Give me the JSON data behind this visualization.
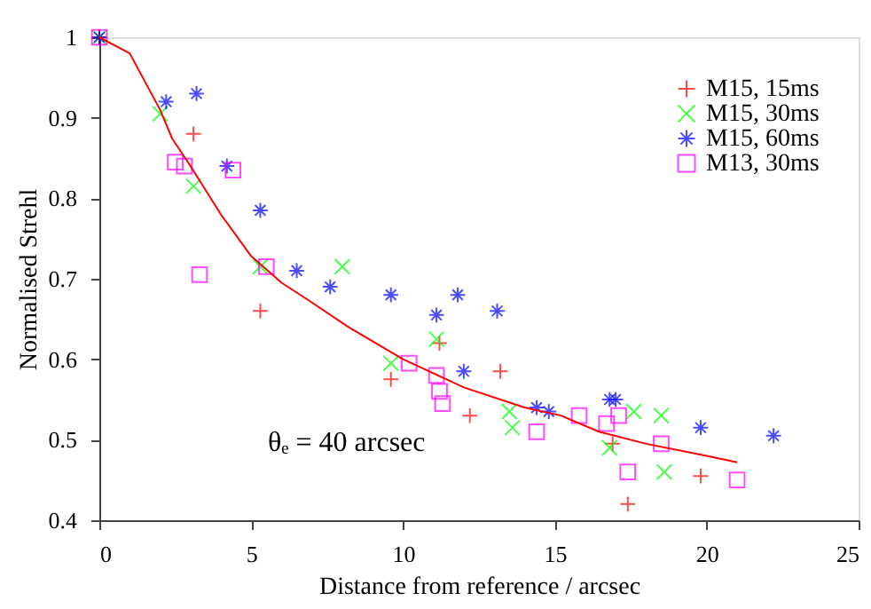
{
  "chart_data": {
    "type": "scatter",
    "xlabel": "Distance from reference / arcsec",
    "ylabel": "Normalised Strehl",
    "xlim": [
      0,
      25
    ],
    "xticks": [
      0,
      5,
      10,
      15,
      20,
      25
    ],
    "ylim": [
      0.4,
      1
    ],
    "yticks": [
      {
        "value": 0.4,
        "label": "0.4"
      },
      {
        "value": 0.5,
        "label": "0.5"
      },
      {
        "value": 0.6,
        "label": "0.6"
      },
      {
        "value": 0.7,
        "label": "0.7"
      },
      {
        "value": 0.8,
        "label": "0.8"
      },
      {
        "value": 0.9,
        "label": "0.9"
      },
      {
        "value": 1,
        "label": "1"
      }
    ],
    "grid": false,
    "legend": "top right",
    "annotations": [
      "θₑ = 40 arcsec"
    ],
    "series": [
      {
        "name": "M15, 15ms",
        "color": "#ff0000",
        "marker": "cross",
        "x": [
          0,
          3.1,
          5.3,
          9.6,
          11.2,
          12.2,
          13.2,
          16.9,
          17.4,
          19.8
        ],
        "values": [
          1,
          0.88,
          0.66,
          0.575,
          0.62,
          0.53,
          0.585,
          0.495,
          0.42,
          0.455
        ]
      },
      {
        "name": "M15, 30ms",
        "color": "#00ff00",
        "marker": "x",
        "x": [
          0,
          2,
          3.1,
          5.3,
          8,
          9.6,
          11.1,
          13.5,
          13.6,
          16.8,
          17.6,
          18.5,
          18.6
        ],
        "values": [
          1,
          0.905,
          0.815,
          0.715,
          0.715,
          0.595,
          0.625,
          0.535,
          0.515,
          0.49,
          0.535,
          0.53,
          0.46
        ]
      },
      {
        "name": "M15, 60ms",
        "color": "#0000ff",
        "x": [
          0,
          2.2,
          3.2,
          4.2,
          5.3,
          6.5,
          7.6,
          9.6,
          11.1,
          11.8,
          12,
          13.1,
          14.4,
          14.8,
          16.8,
          17,
          19.8,
          22.2
        ],
        "values": [
          1,
          0.92,
          0.93,
          0.84,
          0.785,
          0.71,
          0.69,
          0.68,
          0.655,
          0.68,
          0.585,
          0.66,
          0.54,
          0.535,
          0.55,
          0.55,
          0.515,
          0.505
        ]
      },
      {
        "name": "M13, 30ms",
        "color": "#ff00ff",
        "marker": "square",
        "x": [
          0,
          2.5,
          2.8,
          3.3,
          4.4,
          5.5,
          10.2,
          11.1,
          11.2,
          11.3,
          14.4,
          15.8,
          16.7,
          17.1,
          17.4,
          18.5,
          21
        ],
        "values": [
          1,
          0.845,
          0.84,
          0.705,
          0.835,
          0.715,
          0.595,
          0.58,
          0.56,
          0.545,
          0.51,
          0.53,
          0.52,
          0.53,
          0.46,
          0.495,
          0.45
        ]
      },
      {
        "type": "line",
        "color": "#ff0000",
        "marker": "none",
        "line_style": "solid",
        "x": [
          0,
          1,
          2,
          2.4,
          3,
          4,
          5,
          6,
          6.9,
          8.2,
          10,
          12,
          14,
          15.2,
          16.45,
          18,
          20,
          21
        ],
        "values": [
          1,
          0.98,
          0.91,
          0.874,
          0.84,
          0.78,
          0.728,
          0.695,
          0.673,
          0.64,
          0.6,
          0.565,
          0.54,
          0.53,
          0.51,
          0.495,
          0.48,
          0.472
        ]
      }
    ]
  }
}
